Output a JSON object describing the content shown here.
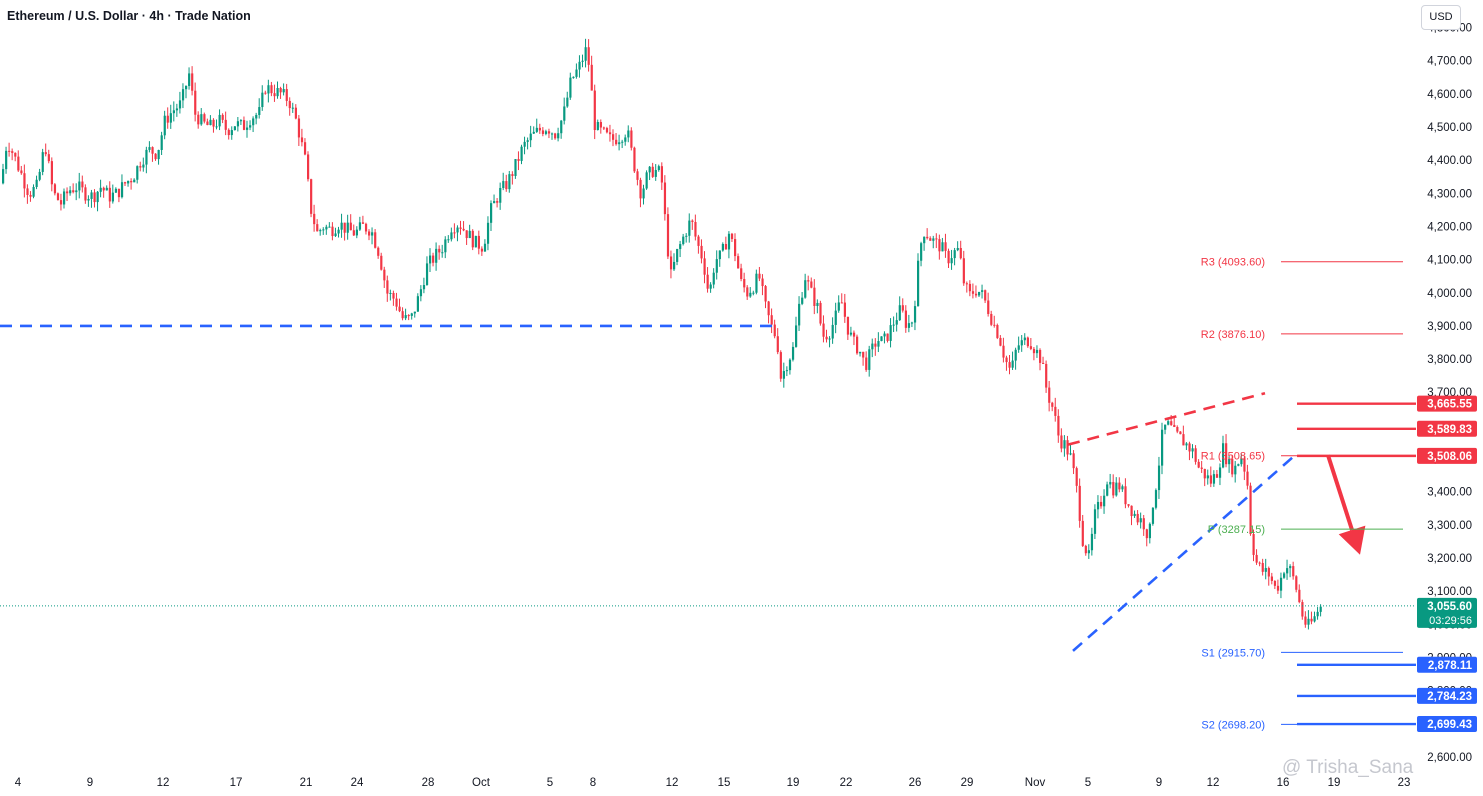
{
  "header": {
    "title": "Ethereum / U.S. Dollar · 4h · Trade Nation",
    "currency": "USD"
  },
  "watermark": "@ Trisha_Sana",
  "colors": {
    "up": "#089981",
    "down": "#f23645",
    "support": "#2962ff",
    "resistance": "#f23645",
    "pivot": "#4caf50",
    "current": "#089981"
  },
  "chart_data": {
    "type": "candlestick",
    "title": "Ethereum / U.S. Dollar · 4h · Trade Nation",
    "ylim": [
      2560,
      4840
    ],
    "y_ticks": [
      "2,600.00",
      "2,700.00",
      "2,800.00",
      "2,900.00",
      "3,000.00",
      "3,100.00",
      "3,200.00",
      "3,300.00",
      "3,400.00",
      "3,500.00",
      "3,600.00",
      "3,700.00",
      "3,800.00",
      "3,900.00",
      "4,000.00",
      "4,100.00",
      "4,200.00",
      "4,300.00",
      "4,400.00",
      "4,500.00",
      "4,600.00",
      "4,700.00",
      "4,800.00"
    ],
    "x_ticks": [
      "4",
      "9",
      "12",
      "17",
      "21",
      "24",
      "28",
      "Oct",
      "5",
      "8",
      "12",
      "15",
      "19",
      "22",
      "26",
      "29",
      "Nov",
      "5",
      "9",
      "12",
      "16",
      "19",
      "23"
    ],
    "close_path": [
      [
        0,
        4330
      ],
      [
        6,
        4460
      ],
      [
        12,
        4420
      ],
      [
        20,
        4360
      ],
      [
        28,
        4300
      ],
      [
        36,
        4320
      ],
      [
        44,
        4450
      ],
      [
        52,
        4300
      ],
      [
        60,
        4270
      ],
      [
        68,
        4310
      ],
      [
        76,
        4320
      ],
      [
        84,
        4300
      ],
      [
        92,
        4290
      ],
      [
        100,
        4320
      ],
      [
        108,
        4290
      ],
      [
        116,
        4300
      ],
      [
        124,
        4330
      ],
      [
        132,
        4350
      ],
      [
        140,
        4400
      ],
      [
        148,
        4430
      ],
      [
        156,
        4420
      ],
      [
        164,
        4520
      ],
      [
        172,
        4550
      ],
      [
        180,
        4570
      ],
      [
        188,
        4660
      ],
      [
        194,
        4540
      ],
      [
        202,
        4510
      ],
      [
        210,
        4500
      ],
      [
        218,
        4520
      ],
      [
        226,
        4490
      ],
      [
        234,
        4510
      ],
      [
        242,
        4500
      ],
      [
        250,
        4530
      ],
      [
        258,
        4540
      ],
      [
        264,
        4620
      ],
      [
        272,
        4610
      ],
      [
        280,
        4600
      ],
      [
        288,
        4580
      ],
      [
        296,
        4510
      ],
      [
        304,
        4400
      ],
      [
        310,
        4250
      ],
      [
        316,
        4180
      ],
      [
        322,
        4200
      ],
      [
        330,
        4190
      ],
      [
        338,
        4210
      ],
      [
        346,
        4190
      ],
      [
        354,
        4180
      ],
      [
        362,
        4200
      ],
      [
        370,
        4190
      ],
      [
        378,
        4120
      ],
      [
        386,
        4000
      ],
      [
        394,
        3980
      ],
      [
        402,
        3920
      ],
      [
        410,
        3920
      ],
      [
        418,
        3990
      ],
      [
        426,
        4080
      ],
      [
        434,
        4110
      ],
      [
        442,
        4140
      ],
      [
        450,
        4200
      ],
      [
        458,
        4210
      ],
      [
        466,
        4180
      ],
      [
        474,
        4150
      ],
      [
        482,
        4140
      ],
      [
        490,
        4250
      ],
      [
        498,
        4300
      ],
      [
        506,
        4330
      ],
      [
        514,
        4380
      ],
      [
        522,
        4440
      ],
      [
        530,
        4470
      ],
      [
        538,
        4490
      ],
      [
        546,
        4500
      ],
      [
        554,
        4480
      ],
      [
        562,
        4530
      ],
      [
        570,
        4640
      ],
      [
        578,
        4680
      ],
      [
        586,
        4740
      ],
      [
        594,
        4500
      ],
      [
        602,
        4480
      ],
      [
        610,
        4460
      ],
      [
        618,
        4470
      ],
      [
        626,
        4490
      ],
      [
        632,
        4400
      ],
      [
        640,
        4300
      ],
      [
        646,
        4350
      ],
      [
        652,
        4370
      ],
      [
        660,
        4360
      ],
      [
        666,
        4150
      ],
      [
        670,
        4050
      ],
      [
        676,
        4120
      ],
      [
        684,
        4180
      ],
      [
        690,
        4220
      ],
      [
        696,
        4150
      ],
      [
        702,
        4100
      ],
      [
        708,
        3990
      ],
      [
        714,
        4100
      ],
      [
        720,
        4110
      ],
      [
        728,
        4180
      ],
      [
        734,
        4120
      ],
      [
        740,
        4030
      ],
      [
        746,
        4000
      ],
      [
        752,
        4020
      ],
      [
        758,
        4050
      ],
      [
        764,
        3960
      ],
      [
        770,
        3900
      ],
      [
        776,
        3860
      ],
      [
        780,
        3740
      ],
      [
        786,
        3790
      ],
      [
        792,
        3830
      ],
      [
        798,
        3960
      ],
      [
        804,
        4050
      ],
      [
        810,
        4000
      ],
      [
        816,
        3960
      ],
      [
        822,
        3870
      ],
      [
        828,
        3880
      ],
      [
        834,
        3920
      ],
      [
        840,
        3980
      ],
      [
        846,
        3900
      ],
      [
        852,
        3850
      ],
      [
        858,
        3830
      ],
      [
        864,
        3780
      ],
      [
        870,
        3820
      ],
      [
        876,
        3860
      ],
      [
        882,
        3850
      ],
      [
        888,
        3880
      ],
      [
        894,
        3920
      ],
      [
        900,
        3950
      ],
      [
        906,
        3900
      ],
      [
        912,
        3920
      ],
      [
        918,
        4110
      ],
      [
        922,
        4190
      ],
      [
        928,
        4170
      ],
      [
        934,
        4150
      ],
      [
        940,
        4140
      ],
      [
        946,
        4100
      ],
      [
        952,
        4120
      ],
      [
        958,
        4130
      ],
      [
        962,
        4040
      ],
      [
        968,
        3990
      ],
      [
        974,
        4010
      ],
      [
        980,
        4000
      ],
      [
        986,
        3960
      ],
      [
        992,
        3910
      ],
      [
        998,
        3870
      ],
      [
        1004,
        3800
      ],
      [
        1010,
        3760
      ],
      [
        1016,
        3840
      ],
      [
        1022,
        3850
      ],
      [
        1028,
        3860
      ],
      [
        1034,
        3830
      ],
      [
        1040,
        3800
      ],
      [
        1046,
        3700
      ],
      [
        1052,
        3650
      ],
      [
        1058,
        3560
      ],
      [
        1064,
        3540
      ],
      [
        1070,
        3500
      ],
      [
        1076,
        3400
      ],
      [
        1082,
        3250
      ],
      [
        1088,
        3200
      ],
      [
        1094,
        3330
      ],
      [
        1100,
        3370
      ],
      [
        1106,
        3440
      ],
      [
        1112,
        3410
      ],
      [
        1118,
        3420
      ],
      [
        1124,
        3380
      ],
      [
        1130,
        3350
      ],
      [
        1136,
        3320
      ],
      [
        1142,
        3310
      ],
      [
        1148,
        3260
      ],
      [
        1152,
        3370
      ],
      [
        1156,
        3440
      ],
      [
        1162,
        3590
      ],
      [
        1168,
        3600
      ],
      [
        1174,
        3570
      ],
      [
        1180,
        3560
      ],
      [
        1186,
        3540
      ],
      [
        1192,
        3520
      ],
      [
        1198,
        3470
      ],
      [
        1204,
        3450
      ],
      [
        1210,
        3430
      ],
      [
        1216,
        3460
      ],
      [
        1222,
        3530
      ],
      [
        1228,
        3480
      ],
      [
        1234,
        3470
      ],
      [
        1240,
        3510
      ],
      [
        1246,
        3440
      ],
      [
        1250,
        3260
      ],
      [
        1256,
        3180
      ],
      [
        1262,
        3160
      ],
      [
        1268,
        3150
      ],
      [
        1274,
        3110
      ],
      [
        1278,
        3120
      ],
      [
        1284,
        3180
      ],
      [
        1290,
        3160
      ],
      [
        1296,
        3100
      ],
      [
        1300,
        3040
      ],
      [
        1306,
        2990
      ],
      [
        1312,
        3010
      ],
      [
        1318,
        3050
      ],
      [
        1322,
        3055
      ]
    ],
    "resistance_zone": {
      "price": 3900,
      "style": "dashed"
    },
    "wedge": {
      "upper": [
        [
          1068,
          3542
        ],
        [
          1265,
          3697
        ]
      ],
      "lower": [
        [
          1073,
          2920
        ],
        [
          1295,
          3510
        ]
      ]
    },
    "projection_arrow": {
      "from": [
        1328,
        3510
      ],
      "to": [
        1360,
        3210
      ]
    },
    "pivots": [
      {
        "label": "R3 (4093.60)",
        "price": 4093.6,
        "color": "#f23645"
      },
      {
        "label": "R2 (3876.10)",
        "price": 3876.1,
        "color": "#f23645"
      },
      {
        "label": "R1 (3508.65)",
        "price": 3508.65,
        "color": "#f23645"
      },
      {
        "label": "P (3287.15)",
        "price": 3287.15,
        "color": "#4caf50"
      },
      {
        "label": "S1 (2915.70)",
        "price": 2915.7,
        "color": "#2962ff"
      },
      {
        "label": "S2 (2698.20)",
        "price": 2698.2,
        "color": "#2962ff"
      }
    ],
    "levels": [
      {
        "label": "3,665.55",
        "price": 3665.55,
        "color": "#f23645"
      },
      {
        "label": "3,589.83",
        "price": 3589.83,
        "color": "#f23645"
      },
      {
        "label": "3,508.06",
        "price": 3508.06,
        "color": "#f23645"
      },
      {
        "label": "2,878.11",
        "price": 2878.11,
        "color": "#2962ff"
      },
      {
        "label": "2,784.23",
        "price": 2784.23,
        "color": "#2962ff"
      },
      {
        "label": "2,699.43",
        "price": 2699.43,
        "color": "#2962ff"
      }
    ],
    "current": {
      "label": "3,055.60",
      "countdown": "03:29:56",
      "price": 3055.6
    }
  }
}
